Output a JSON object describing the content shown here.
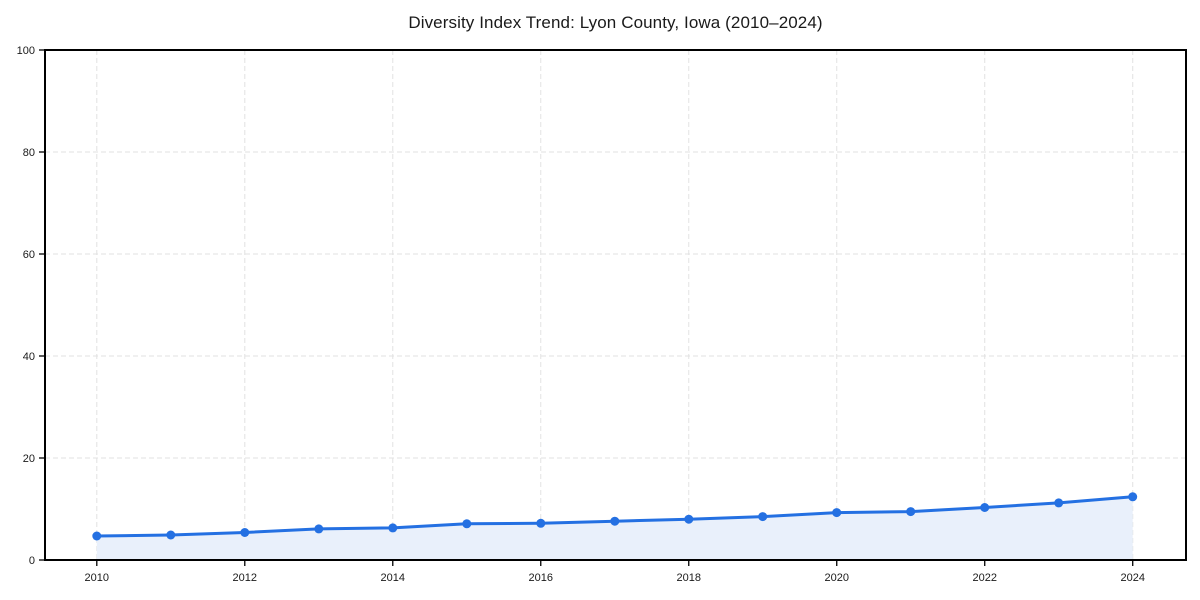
{
  "figure": {
    "background": "#ffffff"
  },
  "chart_data": {
    "type": "line",
    "title": "Diversity Index Trend: Lyon County, Iowa (2010–2024)",
    "x": [
      2010,
      2011,
      2012,
      2013,
      2014,
      2015,
      2016,
      2017,
      2018,
      2019,
      2020,
      2021,
      2022,
      2023,
      2024
    ],
    "series": [
      {
        "name": "Diversity Index",
        "values": [
          4.7,
          4.9,
          5.4,
          6.1,
          6.3,
          7.1,
          7.2,
          7.6,
          8.0,
          8.5,
          9.3,
          9.5,
          10.3,
          11.2,
          12.4
        ]
      }
    ],
    "marker": "circle",
    "area_fill": true,
    "xlabel": "",
    "ylabel": "",
    "xlim": [
      2009.3,
      2024.72
    ],
    "ylim": [
      0,
      100
    ],
    "xticks": [
      2010,
      2012,
      2014,
      2016,
      2018,
      2020,
      2022,
      2024
    ],
    "yticks": [
      0,
      20,
      40,
      60,
      80,
      100
    ],
    "grid": {
      "show": true,
      "style": "dashed"
    },
    "legend": {
      "show": false
    },
    "colors": {
      "line": "#2470e2",
      "marker": "#2470e2",
      "fill": "#e9f0fb",
      "grid": "#e2e2e2",
      "spine": "#000000",
      "text": "#1a1a1a"
    }
  }
}
